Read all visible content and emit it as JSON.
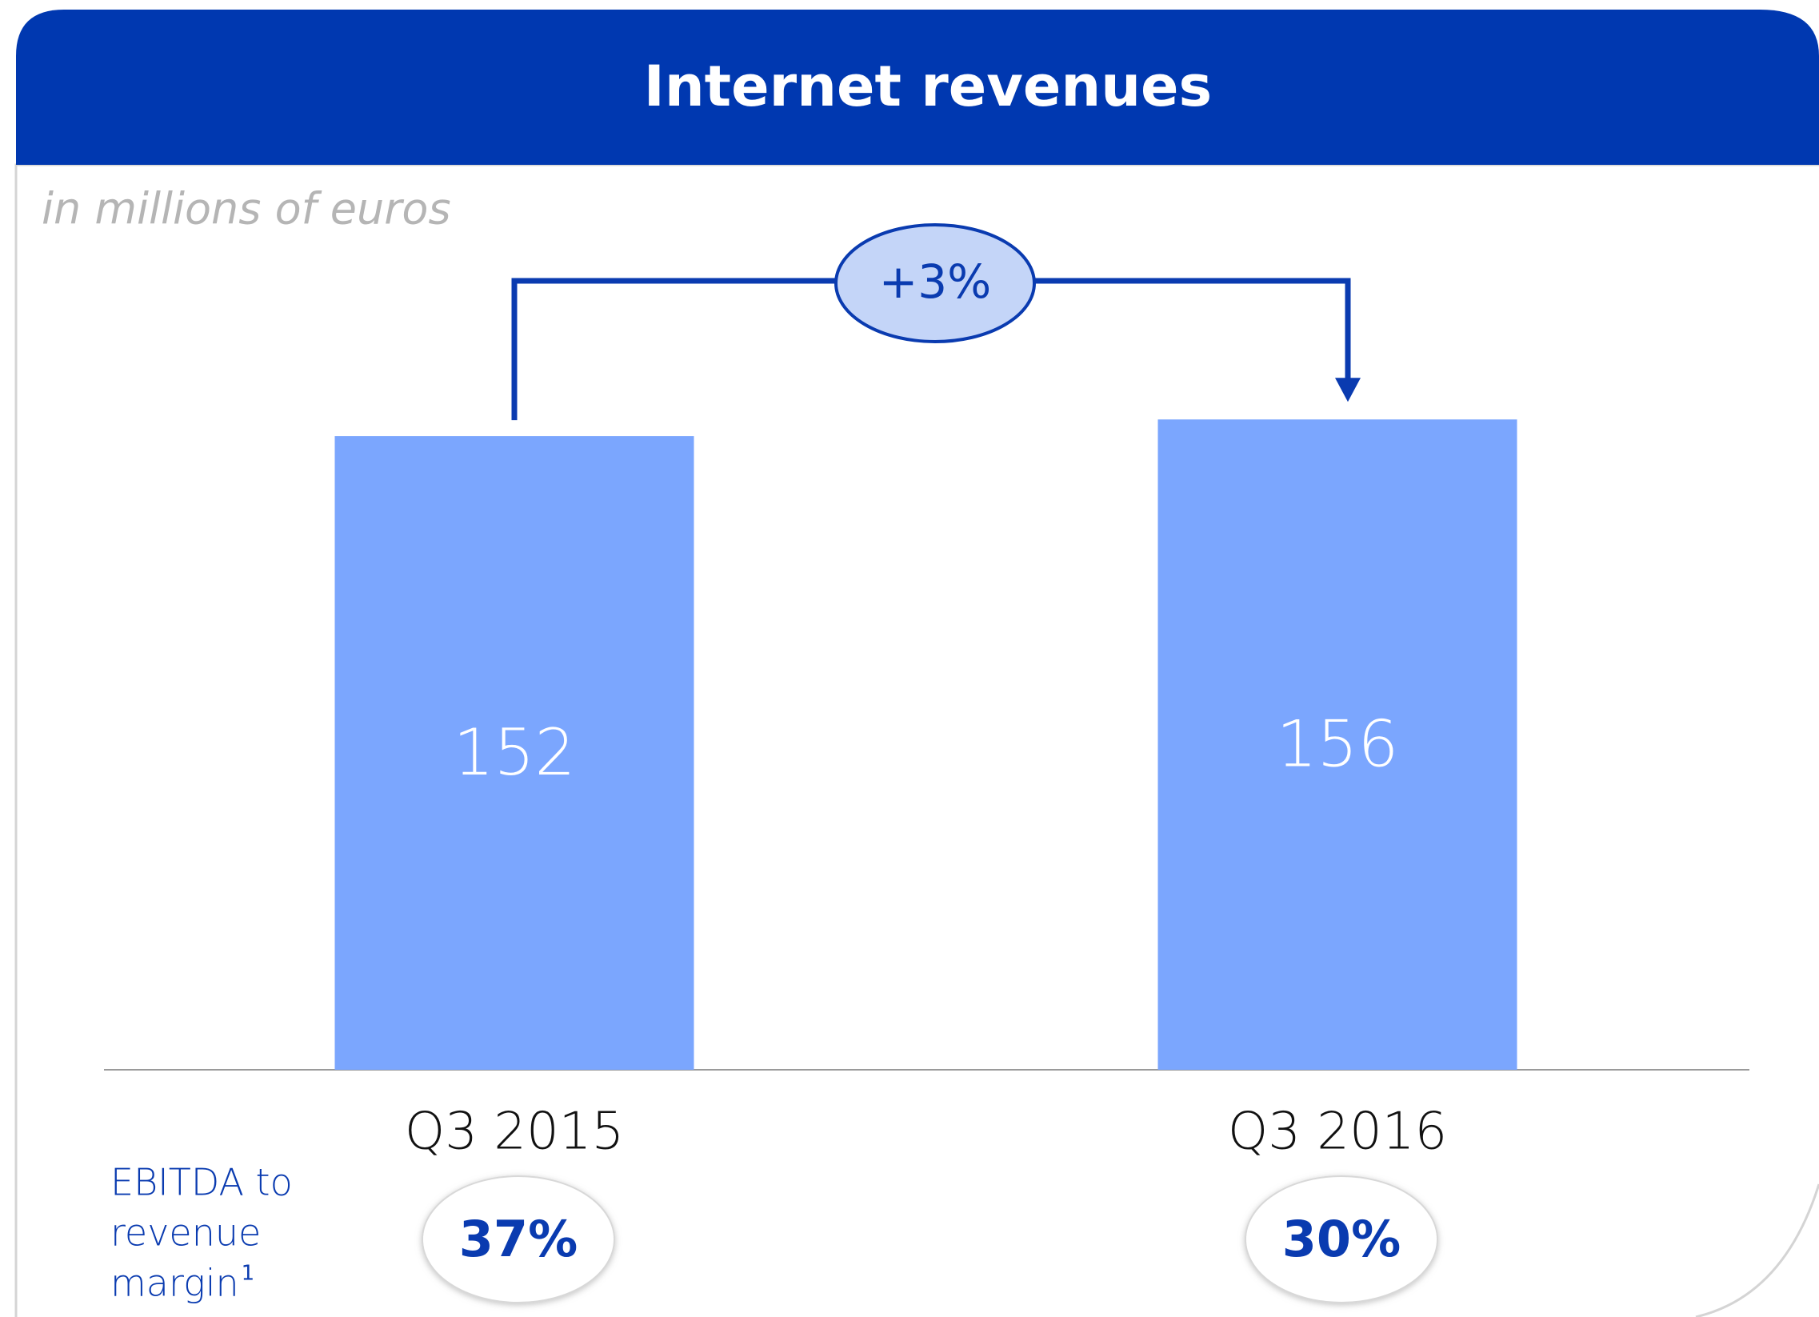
{
  "chart_data": {
    "type": "bar",
    "title": "Internet revenues",
    "subtitle": "in millions of euros",
    "categories": [
      "Q3 2015",
      "Q3 2016"
    ],
    "values": [
      152,
      156
    ],
    "color": "#7ba6fe",
    "ylim": [
      0,
      200
    ],
    "change": {
      "value": 3,
      "label": "+3%"
    },
    "margin": {
      "label_lines": [
        "EBITDA to",
        "revenue",
        "margin"
      ],
      "footnote": "1",
      "values": [
        37,
        30
      ],
      "value_labels": [
        "37%",
        "30%"
      ]
    }
  }
}
